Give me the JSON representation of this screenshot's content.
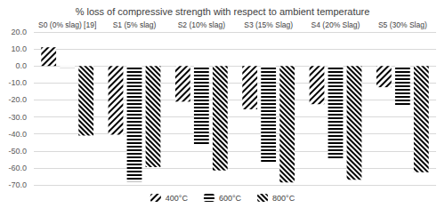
{
  "chart_data": {
    "type": "bar",
    "title": "% loss of compressive strength with respect to ambient temperature",
    "categories": [
      "S0 (0% slag) [19]",
      "S1 (5% slag)",
      "S2 (10% slag)",
      "S3 (15% Slag)",
      "S4 (20% Slag)",
      "S5 (30% Slag)"
    ],
    "series": [
      {
        "name": "400°C",
        "color": "#000000",
        "values": [
          11.0,
          -40.5,
          -21.0,
          -25.5,
          -22.5,
          -12.5
        ]
      },
      {
        "name": "600°C",
        "color": "#000000",
        "values": [
          -1.0,
          -68.0,
          -46.5,
          -56.5,
          -55.0,
          -23.0
        ]
      },
      {
        "name": "800°C",
        "color": "#000000",
        "values": [
          -41.0,
          -59.5,
          -61.5,
          -68.5,
          -67.0,
          -62.5
        ]
      }
    ],
    "ylim": [
      -70,
      20
    ],
    "yticks": [
      {
        "value": -70,
        "label": "-70.0"
      },
      {
        "value": -60,
        "label": "-60.0"
      },
      {
        "value": -50,
        "label": "-50.0"
      },
      {
        "value": -40,
        "label": "-40.0"
      },
      {
        "value": -30,
        "label": "-30.0"
      },
      {
        "value": -20,
        "label": "-20.0"
      },
      {
        "value": -10,
        "label": "-10.0"
      },
      {
        "value": 0,
        "label": "0.0"
      },
      {
        "value": 10,
        "label": "10.0"
      },
      {
        "value": 20,
        "label": "20.0"
      }
    ],
    "grid": true,
    "legend": "bottom"
  }
}
